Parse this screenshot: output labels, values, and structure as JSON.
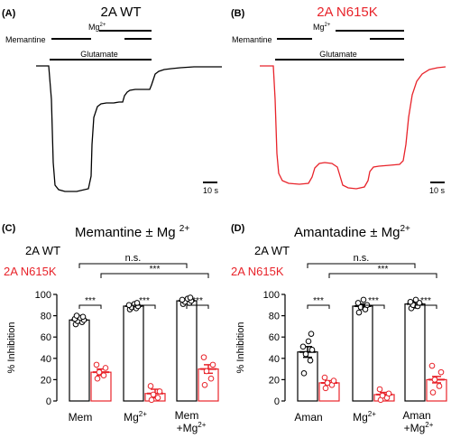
{
  "colors": {
    "wt": "#000000",
    "mut": "#e8232a"
  },
  "panels": {
    "A": {
      "letter": "(A)",
      "title": "2A WT",
      "drug_label": "Memantine",
      "mg_label": "Mg",
      "mg_sup": "2+",
      "glu_label": "Glutamate",
      "scale_label": "10 s"
    },
    "B": {
      "letter": "(B)",
      "title": "2A N615K",
      "drug_label": "Memantine",
      "mg_label": "Mg",
      "mg_sup": "2+",
      "glu_label": "Glutamate",
      "scale_label": "10 s"
    },
    "C": {
      "letter": "(C)",
      "title_main": "Memantine ± Mg ",
      "title_sup": "2+",
      "legend_wt": "2A WT",
      "legend_mut": "2A N615K",
      "ns_label": "n.s.",
      "sig": "***",
      "ylabel": "% Inhibition",
      "cat_1": "Mem",
      "cat_2": "Mg",
      "cat_2_sup": "2+",
      "cat_3a": "Mem",
      "cat_3b": "+Mg",
      "cat_3b_sup": "2+"
    },
    "D": {
      "letter": "(D)",
      "title_main": "Amantadine ± Mg",
      "title_sup": "2+",
      "legend_wt": "2A WT",
      "legend_mut": "2A N615K",
      "ns_label": "n.s.",
      "sig": "***",
      "ylabel": "% Inhibition",
      "cat_1": "Aman",
      "cat_2": "Mg",
      "cat_2_sup": "2+",
      "cat_3a": "Aman",
      "cat_3b": "+Mg",
      "cat_3b_sup": "2+"
    }
  },
  "chart_data": [
    {
      "type": "bar",
      "panel": "C",
      "title": "Memantine ± Mg2+",
      "ylabel": "% Inhibition",
      "ylim": [
        0,
        100
      ],
      "yticks": [
        0,
        20,
        40,
        60,
        80,
        100
      ],
      "categories": [
        "Mem",
        "Mg2+",
        "Mem +Mg2+"
      ],
      "series": [
        {
          "name": "2A WT",
          "values": [
            76,
            89,
            94
          ],
          "errors": [
            2,
            2,
            2
          ],
          "points": [
            [
              72,
              74,
              75,
              76,
              77,
              78,
              79,
              80
            ],
            [
              86,
              87,
              88,
              89,
              90,
              91,
              92
            ],
            [
              91,
              92,
              93,
              94,
              95,
              96,
              97
            ]
          ]
        },
        {
          "name": "2A N615K",
          "values": [
            27,
            7,
            30
          ],
          "errors": [
            3,
            4,
            4
          ],
          "points": [
            [
              21,
              24,
              27,
              31,
              34
            ],
            [
              1,
              3,
              6,
              9,
              14
            ],
            [
              15,
              21,
              28,
              34,
              41
            ]
          ]
        }
      ],
      "comparisons": [
        "***",
        "***",
        "***",
        "***",
        "n.s."
      ]
    },
    {
      "type": "bar",
      "panel": "D",
      "title": "Amantadine ± Mg2+",
      "ylabel": "% Inhibition",
      "ylim": [
        0,
        100
      ],
      "yticks": [
        0,
        20,
        40,
        60,
        80,
        100
      ],
      "categories": [
        "Aman",
        "Mg2+",
        "Aman +Mg2+"
      ],
      "series": [
        {
          "name": "2A WT",
          "values": [
            46,
            89,
            91
          ],
          "errors": [
            5,
            2,
            2
          ],
          "points": [
            [
              26,
              38,
              44,
              48,
              51,
              56,
              63
            ],
            [
              83,
              86,
              88,
              90,
              92,
              95
            ],
            [
              87,
              89,
              90,
              92,
              93,
              95
            ]
          ]
        },
        {
          "name": "2A N615K",
          "values": [
            17,
            6,
            20
          ],
          "errors": [
            2,
            2,
            3
          ],
          "points": [
            [
              12,
              15,
              17,
              19,
              22
            ],
            [
              1,
              3,
              5,
              7,
              11
            ],
            [
              8,
              14,
              20,
              27,
              33
            ]
          ]
        }
      ],
      "comparisons": [
        "***",
        "***",
        "***",
        "***",
        "n.s."
      ]
    }
  ]
}
